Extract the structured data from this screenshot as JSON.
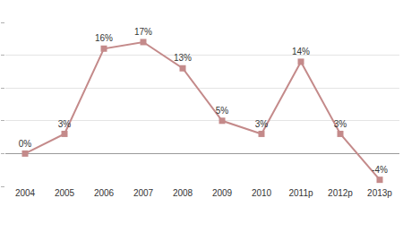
{
  "chart_data": {
    "type": "line",
    "categories": [
      "2004",
      "2005",
      "2006",
      "2007",
      "2008",
      "2009",
      "2010",
      "2011p",
      "2012p",
      "2013p"
    ],
    "values": [
      0,
      3,
      16,
      17,
      13,
      5,
      3,
      14,
      3,
      -4
    ],
    "value_labels": [
      "0%",
      "3%",
      "16%",
      "17%",
      "13%",
      "5%",
      "3%",
      "14%",
      "3%",
      "-4%"
    ],
    "color": "#c48a8a",
    "marker": "square",
    "ylim": [
      -5,
      20
    ],
    "yticks": [
      -5,
      0,
      5,
      10,
      15,
      20
    ],
    "grid": true,
    "data_labels": true,
    "tick_labels": "x"
  }
}
